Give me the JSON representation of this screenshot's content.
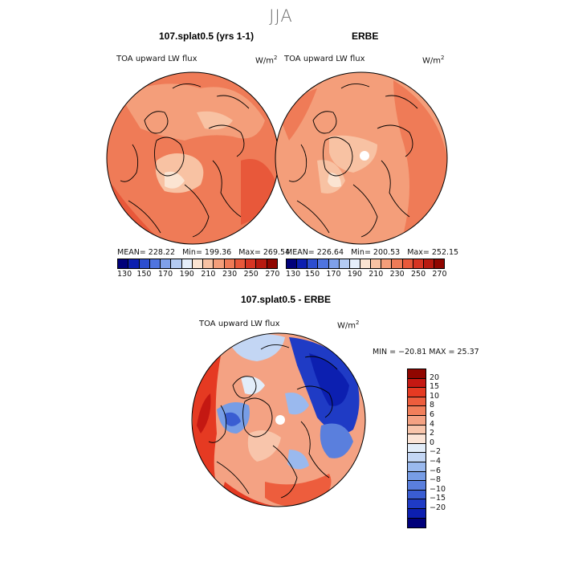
{
  "season_title": "JJA",
  "panels": [
    {
      "title": "107.splat0.5 (yrs 1-1)",
      "field": "TOA upward LW flux",
      "units": "W/m",
      "units_exp": "2",
      "stats": {
        "mean": "MEAN= 228.22",
        "min": "Min= 199.36",
        "max": "Max= 269.54"
      }
    },
    {
      "title": "ERBE",
      "field": "TOA upward LW flux",
      "units": "W/m",
      "units_exp": "2",
      "stats": {
        "mean": "MEAN= 226.64",
        "min": "Min= 200.53",
        "max": "Max= 252.15"
      }
    },
    {
      "title": "107.splat0.5 - ERBE",
      "field": "TOA upward LW flux",
      "units": "W/m",
      "units_exp": "2",
      "stats": {
        "minmax": "MIN = −20.81 MAX =  25.37"
      }
    }
  ],
  "abs_colorbar": {
    "colors": [
      "#00007a",
      "#0c1fb0",
      "#2c4ed0",
      "#4f74e0",
      "#7fa0ea",
      "#b4cbf3",
      "#e5eefa",
      "#fbe4d2",
      "#f8c2a3",
      "#f49e7a",
      "#ef7b57",
      "#e8583a",
      "#d63523",
      "#b81a10",
      "#900600"
    ],
    "ticks": [
      "130",
      "150",
      "170",
      "190",
      "210",
      "230",
      "250",
      "270"
    ]
  },
  "diff_colorbar": {
    "colors_top_to_bottom": [
      "#900600",
      "#c41812",
      "#e53a22",
      "#ed5d3d",
      "#f17f5b",
      "#f4a283",
      "#f8c5ab",
      "#fbe4d6",
      "#e2edf9",
      "#c3d6f4",
      "#9ab9ee",
      "#779de6",
      "#5a7fdd",
      "#3a5dd2",
      "#1f3bc5",
      "#0c1fb0",
      "#00007a"
    ],
    "ticks_top_to_bottom": [
      "20",
      "15",
      "10",
      "8",
      "6",
      "4",
      "2",
      "0",
      "−2",
      "−4",
      "−6",
      "−8",
      "−10",
      "−15",
      "−20"
    ]
  }
}
